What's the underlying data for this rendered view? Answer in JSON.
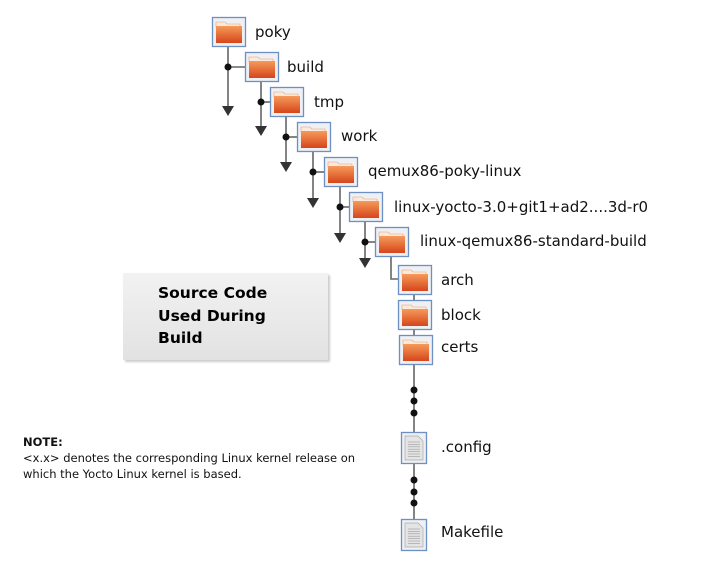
{
  "tree": {
    "folders": [
      "poky",
      "build",
      "tmp",
      "work",
      "qemux86-poky-linux",
      "linux-yocto-3.0+git1+ad2....3d-r0",
      "linux-qemux86-standard-build",
      "arch",
      "block",
      "certs"
    ],
    "files": [
      ".config",
      "Makefile"
    ]
  },
  "callout": {
    "lines": [
      "Source Code",
      "Used During",
      "Build"
    ]
  },
  "note": {
    "title": "NOTE:",
    "line1": "<x.x> denotes the corresponding Linux kernel release on",
    "line2": "which the Yocto Linux kernel is based."
  },
  "colors": {
    "folder": "#e05a20",
    "icon_border": "#6e8fc2",
    "line": "#666666"
  }
}
